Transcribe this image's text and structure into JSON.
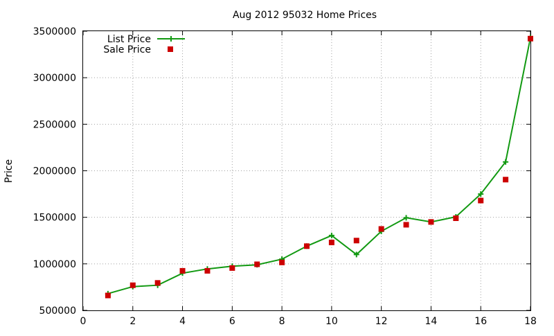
{
  "chart_data": {
    "type": "line",
    "title": "Aug 2012 95032 Home Prices",
    "xlabel": "",
    "ylabel": "Price",
    "xlim": [
      0,
      18
    ],
    "ylim": [
      500000,
      3500000
    ],
    "x_ticks": [
      "0",
      "2",
      "4",
      "6",
      "8",
      "10",
      "12",
      "14",
      "16",
      "18"
    ],
    "y_ticks": [
      "500000",
      "1000000",
      "1500000",
      "2000000",
      "2500000",
      "3000000",
      "3500000"
    ],
    "grid": true,
    "legend_position": "top-left",
    "series": [
      {
        "name": "List Price",
        "style": "line-with-plus-markers",
        "color": "#119911",
        "x": [
          1,
          2,
          3,
          4,
          5,
          6,
          7,
          8,
          9,
          10,
          11,
          12,
          13,
          14,
          15,
          16,
          17,
          18
        ],
        "values": [
          680000,
          755000,
          770000,
          900000,
          945000,
          975000,
          990000,
          1050000,
          1190000,
          1305000,
          1100000,
          1350000,
          1495000,
          1450000,
          1505000,
          1750000,
          2095000,
          3430000
        ]
      },
      {
        "name": "Sale Price",
        "style": "square-markers",
        "color": "#cc0000",
        "x": [
          1,
          2,
          3,
          4,
          5,
          6,
          7,
          8,
          9,
          10,
          11,
          12,
          13,
          14,
          15,
          16,
          17,
          18
        ],
        "values": [
          660000,
          770000,
          795000,
          925000,
          925000,
          955000,
          995000,
          1015000,
          1190000,
          1230000,
          1250000,
          1375000,
          1420000,
          1450000,
          1490000,
          1680000,
          1905000,
          3420000
        ]
      }
    ]
  }
}
